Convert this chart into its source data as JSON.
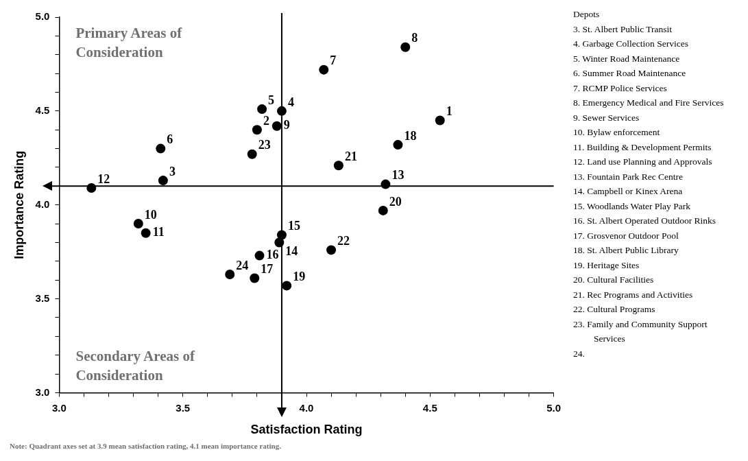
{
  "chart_data": {
    "type": "scatter",
    "xlabel": "Satisfaction Rating",
    "ylabel": "Importance Rating",
    "xlim": [
      3,
      5
    ],
    "ylim": [
      3,
      5
    ],
    "xticks": [
      {
        "value": 3,
        "label": "3.0"
      },
      {
        "value": 3.1,
        "label": null
      },
      {
        "value": 3.2,
        "label": null
      },
      {
        "value": 3.3,
        "label": null
      },
      {
        "value": 3.4,
        "label": null
      },
      {
        "value": 3.5,
        "label": "3.5"
      },
      {
        "value": 3.6,
        "label": null
      },
      {
        "value": 3.7,
        "label": null
      },
      {
        "value": 3.8,
        "label": null
      },
      {
        "value": 3.9,
        "label": null
      },
      {
        "value": 4,
        "label": "4.0"
      },
      {
        "value": 4.1,
        "label": null
      },
      {
        "value": 4.2,
        "label": null
      },
      {
        "value": 4.3,
        "label": null
      },
      {
        "value": 4.4,
        "label": null
      },
      {
        "value": 4.5,
        "label": "4.5"
      },
      {
        "value": 4.6,
        "label": null
      },
      {
        "value": 4.7,
        "label": null
      },
      {
        "value": 4.8,
        "label": null
      },
      {
        "value": 4.9,
        "label": null
      },
      {
        "value": 5,
        "label": "5.0"
      }
    ],
    "yticks": [
      {
        "value": 3,
        "label": "3.0"
      },
      {
        "value": 3.1,
        "label": null
      },
      {
        "value": 3.2,
        "label": null
      },
      {
        "value": 3.3,
        "label": null
      },
      {
        "value": 3.4,
        "label": null
      },
      {
        "value": 3.5,
        "label": "3.5"
      },
      {
        "value": 3.6,
        "label": null
      },
      {
        "value": 3.7,
        "label": null
      },
      {
        "value": 3.8,
        "label": null
      },
      {
        "value": 3.9,
        "label": null
      },
      {
        "value": 4,
        "label": "4.0"
      },
      {
        "value": 4.1,
        "label": null
      },
      {
        "value": 4.2,
        "label": null
      },
      {
        "value": 4.3,
        "label": null
      },
      {
        "value": 4.4,
        "label": null
      },
      {
        "value": 4.5,
        "label": "4.5"
      },
      {
        "value": 4.6,
        "label": null
      },
      {
        "value": 4.7,
        "label": null
      },
      {
        "value": 4.8,
        "label": null
      },
      {
        "value": 4.9,
        "label": null
      },
      {
        "value": 5,
        "label": "5.0"
      }
    ],
    "marker": "circle",
    "series": [
      {
        "color": "#000000",
        "x": [
          4.54,
          3.8,
          3.42,
          3.9,
          3.82,
          3.41,
          4.07,
          4.4,
          3.88,
          3.32,
          3.35,
          3.13,
          4.32,
          3.89,
          3.9,
          3.81,
          3.79,
          4.37,
          3.92,
          4.31,
          4.13,
          4.1,
          3.78,
          3.69
        ],
        "values": [
          4.45,
          4.4,
          4.13,
          4.5,
          4.51,
          4.3,
          4.72,
          4.84,
          4.42,
          3.9,
          3.85,
          4.09,
          4.11,
          3.8,
          3.84,
          3.73,
          3.61,
          4.32,
          3.57,
          3.97,
          4.21,
          3.76,
          4.27,
          3.63
        ]
      }
    ],
    "ref_lines": [
      {
        "axis": "x",
        "value": 3.9,
        "color": "#000000"
      },
      {
        "axis": "y",
        "value": 4.1,
        "color": "#000000"
      }
    ],
    "annotations": [
      "Primary Areas of Consideration",
      "Secondary Areas of Consideration",
      "Note: Quadrant axes set at 3.9 mean satisfaction rating, 4.1 mean importance rating.",
      "Depots",
      "3. St. Albert Public Transit",
      "4. Garbage Collection Services",
      "5. Winter Road Maintenance",
      "6. Summer Road Maintenance",
      "7. RCMP Police Services",
      "8. Emergency Medical and Fire Services",
      "9. Sewer Services",
      "10. Bylaw enforcement",
      "11. Building & Development Permits",
      "12. Land use Planning and Approvals",
      "13. Fountain Park Rec Centre",
      "14. Campbell or Kinex Arena",
      "15. Woodlands Water Play Park",
      "16. St. Albert Operated Outdoor Rinks",
      "17. Grosvenor Outdoor Pool",
      "18. St. Albert Public Library",
      "19. Heritage Sites",
      "20. Cultural Facilities",
      "21. Rec Programs and Activities",
      "22. Cultural Programs",
      "23. Family and Community Support Services",
      "24.",
      {
        "text": "1",
        "x": 4.54,
        "y": 4.45
      },
      {
        "text": "2",
        "x": 3.8,
        "y": 4.4
      },
      {
        "text": "3",
        "x": 3.42,
        "y": 4.13
      },
      {
        "text": "4",
        "x": 3.9,
        "y": 4.5
      },
      {
        "text": "5",
        "x": 3.82,
        "y": 4.51
      },
      {
        "text": "6",
        "x": 3.41,
        "y": 4.3
      },
      {
        "text": "7",
        "x": 4.07,
        "y": 4.72
      },
      {
        "text": "8",
        "x": 4.4,
        "y": 4.84
      },
      {
        "text": "9",
        "x": 3.88,
        "y": 4.42
      },
      {
        "text": "10",
        "x": 3.32,
        "y": 3.9
      },
      {
        "text": "11",
        "x": 3.35,
        "y": 3.85
      },
      {
        "text": "12",
        "x": 3.13,
        "y": 4.09
      },
      {
        "text": "13",
        "x": 4.32,
        "y": 4.11
      },
      {
        "text": "14",
        "x": 3.89,
        "y": 3.8
      },
      {
        "text": "15",
        "x": 3.9,
        "y": 3.84
      },
      {
        "text": "16",
        "x": 3.81,
        "y": 3.73
      },
      {
        "text": "17",
        "x": 3.79,
        "y": 3.61
      },
      {
        "text": "18",
        "x": 4.37,
        "y": 4.32
      },
      {
        "text": "19",
        "x": 3.92,
        "y": 3.57
      },
      {
        "text": "20",
        "x": 4.31,
        "y": 3.97
      },
      {
        "text": "21",
        "x": 4.13,
        "y": 4.21
      },
      {
        "text": "22",
        "x": 4.1,
        "y": 3.76
      },
      {
        "text": "23",
        "x": 3.78,
        "y": 4.27
      },
      {
        "text": "24",
        "x": 3.69,
        "y": 3.63
      }
    ]
  }
}
